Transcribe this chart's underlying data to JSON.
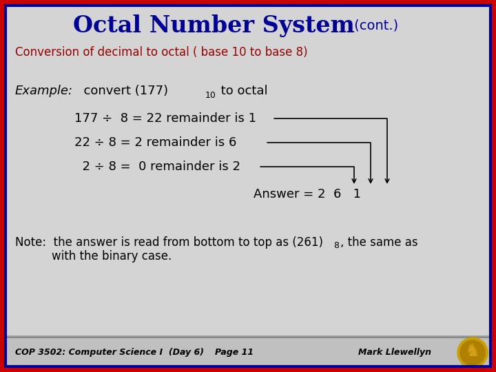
{
  "title_main": "Octal Number System",
  "title_cont": " (cont.)",
  "subtitle": "Conversion of decimal to octal ( base 10 to base 8)",
  "line1": "177 ÷  8 = 22 remainder is 1",
  "line2": "22 ÷ 8 = 2 remainder is 6",
  "line3": "  2 ÷ 8 =  0 remainder is 2",
  "answer_label": "Answer = 2  6   1",
  "footer_left": "COP 3502: Computer Science I  (Day 6)",
  "footer_center": "Page 11",
  "footer_right": "Mark Llewellyn",
  "bg_color": "#d4d4d4",
  "border_outer_color": "#cc0000",
  "border_inner_color": "#000099",
  "title_color": "#000099",
  "subtitle_color": "#990000",
  "body_color": "#000000",
  "footer_bg": "#bbbbbb"
}
